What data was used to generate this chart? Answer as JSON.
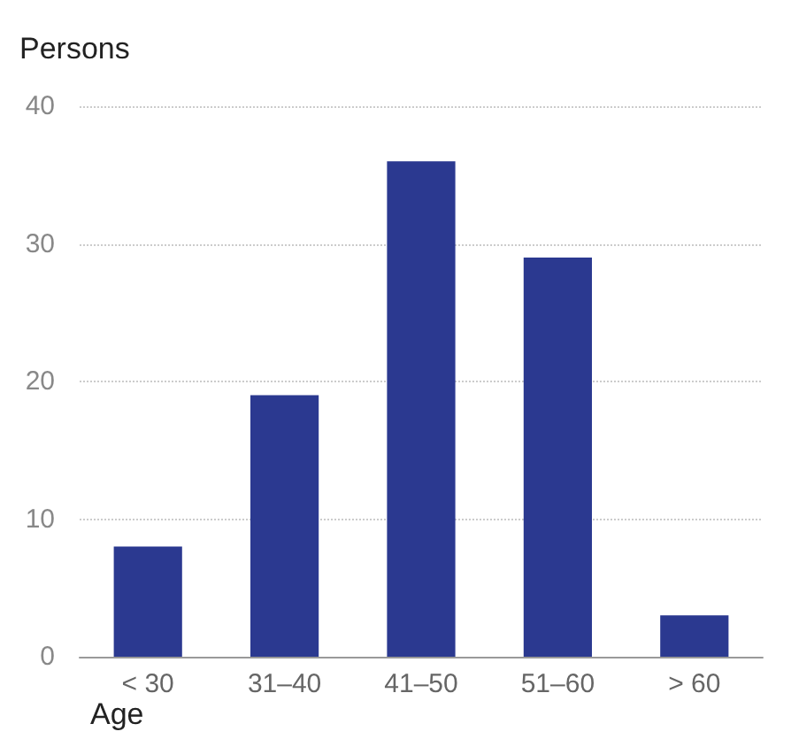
{
  "chart_data": {
    "type": "bar",
    "ylabel": "Persons",
    "xlabel": "Age",
    "categories": [
      "< 30",
      "31–40",
      "41–50",
      "51–60",
      "> 60"
    ],
    "values": [
      8,
      19,
      36,
      29,
      3
    ],
    "color": "#2b3990",
    "ylim": [
      0,
      40
    ],
    "yticks": [
      0,
      10,
      20,
      30,
      40
    ],
    "grid": "y"
  }
}
